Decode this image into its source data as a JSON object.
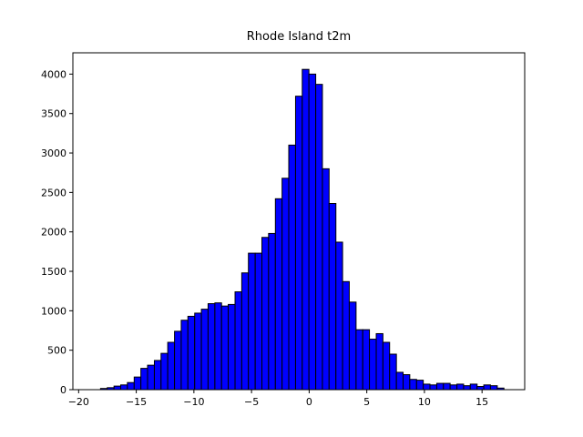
{
  "chart_data": {
    "type": "histogram",
    "title": "Rhode Island t2m",
    "bins": [
      -18.1,
      -17.52,
      -16.93,
      -16.35,
      -15.77,
      -15.18,
      -14.6,
      -14.02,
      -13.43,
      -12.85,
      -12.27,
      -11.68,
      -11.1,
      -10.52,
      -9.93,
      -9.35,
      -8.77,
      -8.18,
      -7.6,
      -7.02,
      -6.43,
      -5.85,
      -5.27,
      -4.68,
      -4.1,
      -3.52,
      -2.93,
      -2.35,
      -1.77,
      -1.18,
      -0.6,
      -0.02,
      0.57,
      1.15,
      1.73,
      2.32,
      2.9,
      3.48,
      4.07,
      4.65,
      5.23,
      5.82,
      6.4,
      6.98,
      7.57,
      8.15,
      8.73,
      9.32,
      9.9,
      10.48,
      11.07,
      11.65,
      12.23,
      12.82,
      13.4,
      13.98,
      14.57,
      15.15,
      15.73,
      16.32,
      16.9
    ],
    "values": [
      15,
      25,
      45,
      60,
      90,
      160,
      270,
      310,
      370,
      460,
      600,
      740,
      880,
      930,
      970,
      1020,
      1090,
      1100,
      1060,
      1080,
      1240,
      1480,
      1730,
      1730,
      1930,
      1980,
      2420,
      2680,
      3100,
      3720,
      4060,
      4000,
      3870,
      2800,
      2360,
      1870,
      1370,
      1110,
      760,
      760,
      640,
      710,
      600,
      450,
      220,
      190,
      130,
      120,
      70,
      60,
      80,
      80,
      60,
      70,
      50,
      70,
      40,
      60,
      50,
      20
    ],
    "color": "#0000ff",
    "edgecolor": "#000000",
    "xlim": [
      -20.5,
      18.7
    ],
    "xticks": [
      {
        "value": -20,
        "label": "−20"
      },
      {
        "value": -15,
        "label": "−15"
      },
      {
        "value": -10,
        "label": "−10"
      },
      {
        "value": -5,
        "label": "−5"
      },
      0,
      5,
      10,
      15
    ],
    "ylim": [
      0,
      4270
    ],
    "yticks": [
      0,
      500,
      1000,
      1500,
      2000,
      2500,
      3000,
      3500,
      4000
    ]
  }
}
